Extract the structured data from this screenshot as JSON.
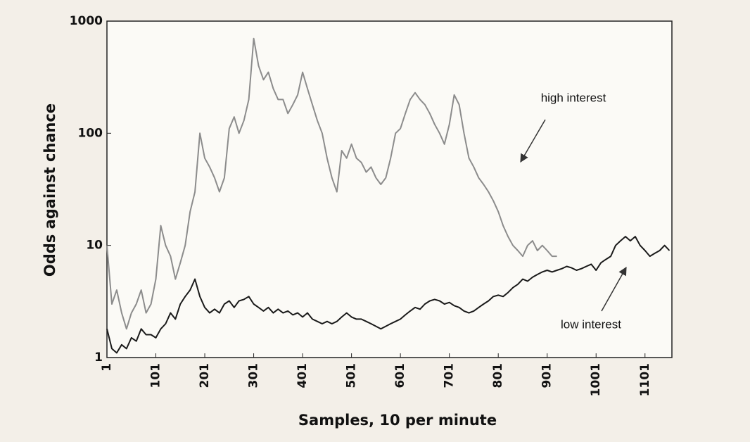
{
  "chart_data": {
    "type": "line",
    "x_label": "Samples, 10 per minute",
    "y_label": "Odds against chance",
    "annotations": [
      "high interest",
      "low interest"
    ],
    "log_y": true,
    "xlim": [
      1,
      1156
    ],
    "ylim": [
      1,
      1000
    ],
    "xticks": [
      1,
      101,
      201,
      301,
      401,
      501,
      601,
      701,
      801,
      901,
      1001,
      1101
    ],
    "yticks": [
      1,
      10,
      100,
      1000
    ],
    "x": [
      1,
      11,
      21,
      31,
      41,
      51,
      61,
      71,
      81,
      91,
      101,
      111,
      121,
      131,
      141,
      151,
      161,
      171,
      181,
      191,
      201,
      211,
      221,
      231,
      241,
      251,
      261,
      271,
      281,
      291,
      301,
      311,
      321,
      331,
      341,
      351,
      361,
      371,
      381,
      391,
      401,
      411,
      421,
      431,
      441,
      451,
      461,
      471,
      481,
      491,
      501,
      511,
      521,
      531,
      541,
      551,
      561,
      571,
      581,
      591,
      601,
      611,
      621,
      631,
      641,
      651,
      661,
      671,
      681,
      691,
      701,
      711,
      721,
      731,
      741,
      751,
      761,
      771,
      781,
      791,
      801,
      811,
      821,
      831,
      841,
      851,
      861,
      871,
      881,
      891,
      901,
      911,
      921,
      931,
      941,
      951,
      961,
      971,
      981,
      991,
      1001,
      1011,
      1021,
      1031,
      1041,
      1051,
      1061,
      1071,
      1081,
      1091,
      1101,
      1111,
      1121,
      1131,
      1141,
      1151
    ],
    "series": [
      {
        "color": "#8c8c8c",
        "values": [
          10,
          3,
          4,
          2.5,
          1.8,
          2.5,
          3,
          4,
          2.5,
          3,
          5,
          15,
          10,
          8,
          5,
          7,
          10,
          20,
          30,
          100,
          60,
          50,
          40,
          30,
          40,
          110,
          140,
          100,
          130,
          200,
          700,
          400,
          300,
          350,
          250,
          200,
          200,
          150,
          180,
          220,
          350,
          250,
          180,
          130,
          100,
          60,
          40,
          30,
          70,
          60,
          80,
          60,
          55,
          45,
          50,
          40,
          35,
          40,
          60,
          100,
          110,
          150,
          200,
          230,
          200,
          180,
          150,
          120,
          100,
          80,
          120,
          220,
          180,
          100,
          60,
          50,
          40,
          35,
          30,
          25,
          20,
          15,
          12,
          10,
          9,
          8,
          10,
          11,
          9,
          10,
          9,
          8,
          8,
          null,
          null,
          null,
          null,
          null,
          null,
          null,
          null,
          null,
          null,
          null,
          null,
          null,
          null,
          null,
          null,
          null,
          null,
          null,
          null,
          null,
          null,
          null
        ]
      },
      {
        "color": "#1a1a1a",
        "values": [
          1.8,
          1.2,
          1.1,
          1.3,
          1.2,
          1.5,
          1.4,
          1.8,
          1.6,
          1.6,
          1.5,
          1.8,
          2.0,
          2.5,
          2.2,
          3,
          3.5,
          4,
          5,
          3.5,
          2.8,
          2.5,
          2.7,
          2.5,
          3,
          3.2,
          2.8,
          3.2,
          3.3,
          3.5,
          3,
          2.8,
          2.6,
          2.8,
          2.5,
          2.7,
          2.5,
          2.6,
          2.4,
          2.5,
          2.3,
          2.5,
          2.2,
          2.1,
          2.0,
          2.1,
          2.0,
          2.1,
          2.3,
          2.5,
          2.3,
          2.2,
          2.2,
          2.1,
          2.0,
          1.9,
          1.8,
          1.9,
          2.0,
          2.1,
          2.2,
          2.4,
          2.6,
          2.8,
          2.7,
          3.0,
          3.2,
          3.3,
          3.2,
          3.0,
          3.1,
          2.9,
          2.8,
          2.6,
          2.5,
          2.6,
          2.8,
          3.0,
          3.2,
          3.5,
          3.6,
          3.5,
          3.8,
          4.2,
          4.5,
          5,
          4.8,
          5.2,
          5.5,
          5.8,
          6,
          5.8,
          6,
          6.2,
          6.5,
          6.3,
          6.0,
          6.2,
          6.5,
          6.8,
          6.0,
          7,
          7.5,
          8,
          10,
          11,
          12,
          11,
          12,
          10,
          9,
          8,
          8.5,
          9,
          10,
          9
        ]
      }
    ]
  }
}
